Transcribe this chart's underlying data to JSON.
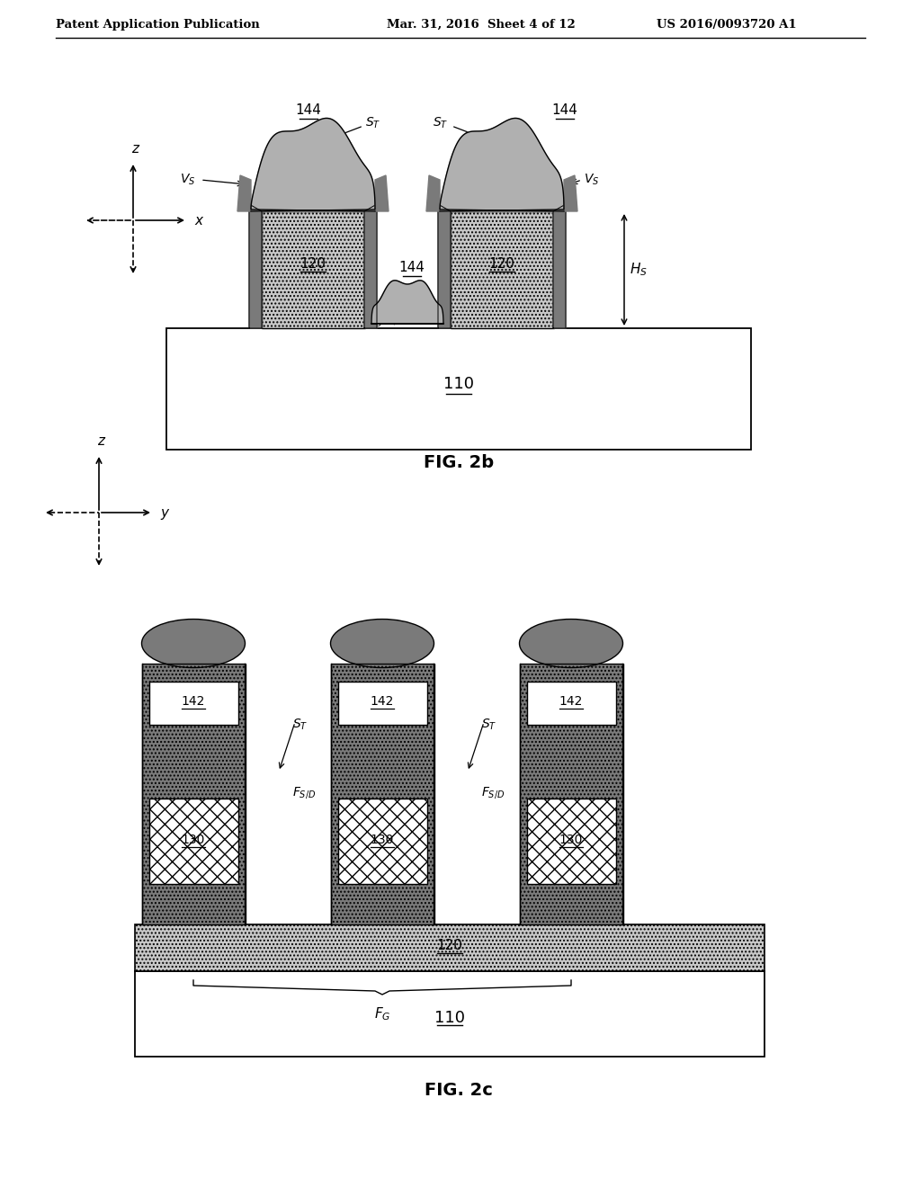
{
  "header_left": "Patent Application Publication",
  "header_mid": "Mar. 31, 2016  Sheet 4 of 12",
  "header_right": "US 2016/0093720 A1",
  "fig2b_label": "FIG. 2b",
  "fig2c_label": "FIG. 2c",
  "background": "#ffffff",
  "dot_fill": "#c8c8c8",
  "dark_gray": "#7a7a7a",
  "light_gray": "#b8b8b8"
}
